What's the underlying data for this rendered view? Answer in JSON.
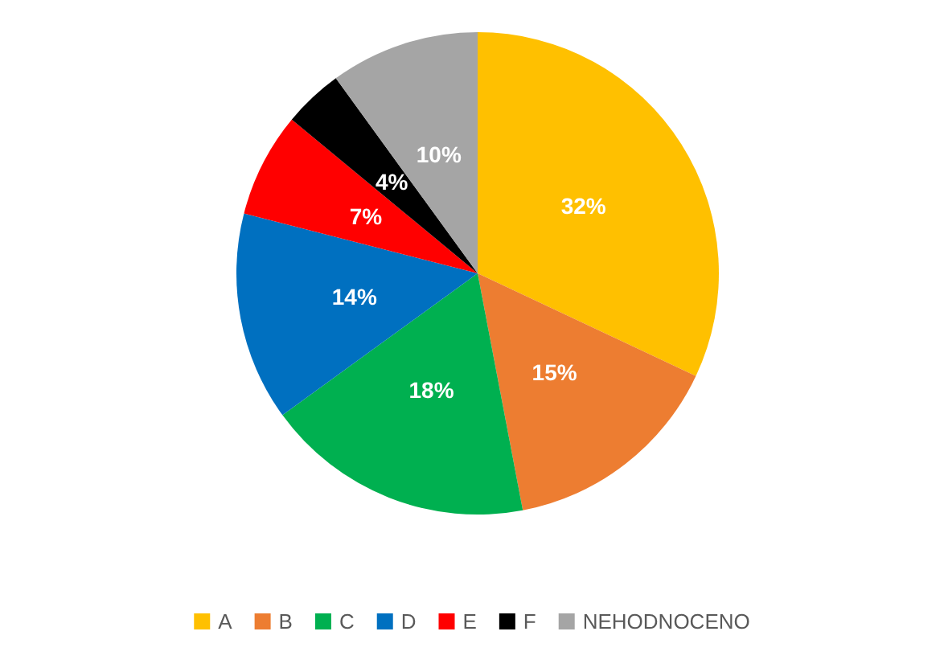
{
  "chart_data": {
    "type": "pie",
    "categories": [
      "A",
      "B",
      "C",
      "D",
      "E",
      "F",
      "NEHODNOCENO"
    ],
    "values": [
      32,
      15,
      18,
      14,
      7,
      4,
      10
    ],
    "colors": [
      "#ffc000",
      "#ed7d31",
      "#00b050",
      "#0070c0",
      "#ff0000",
      "#000000",
      "#a5a5a5"
    ],
    "value_labels": [
      "32%",
      "15%",
      "18%",
      "14%",
      "7%",
      "4%",
      "10%"
    ],
    "legend": "bottom"
  }
}
